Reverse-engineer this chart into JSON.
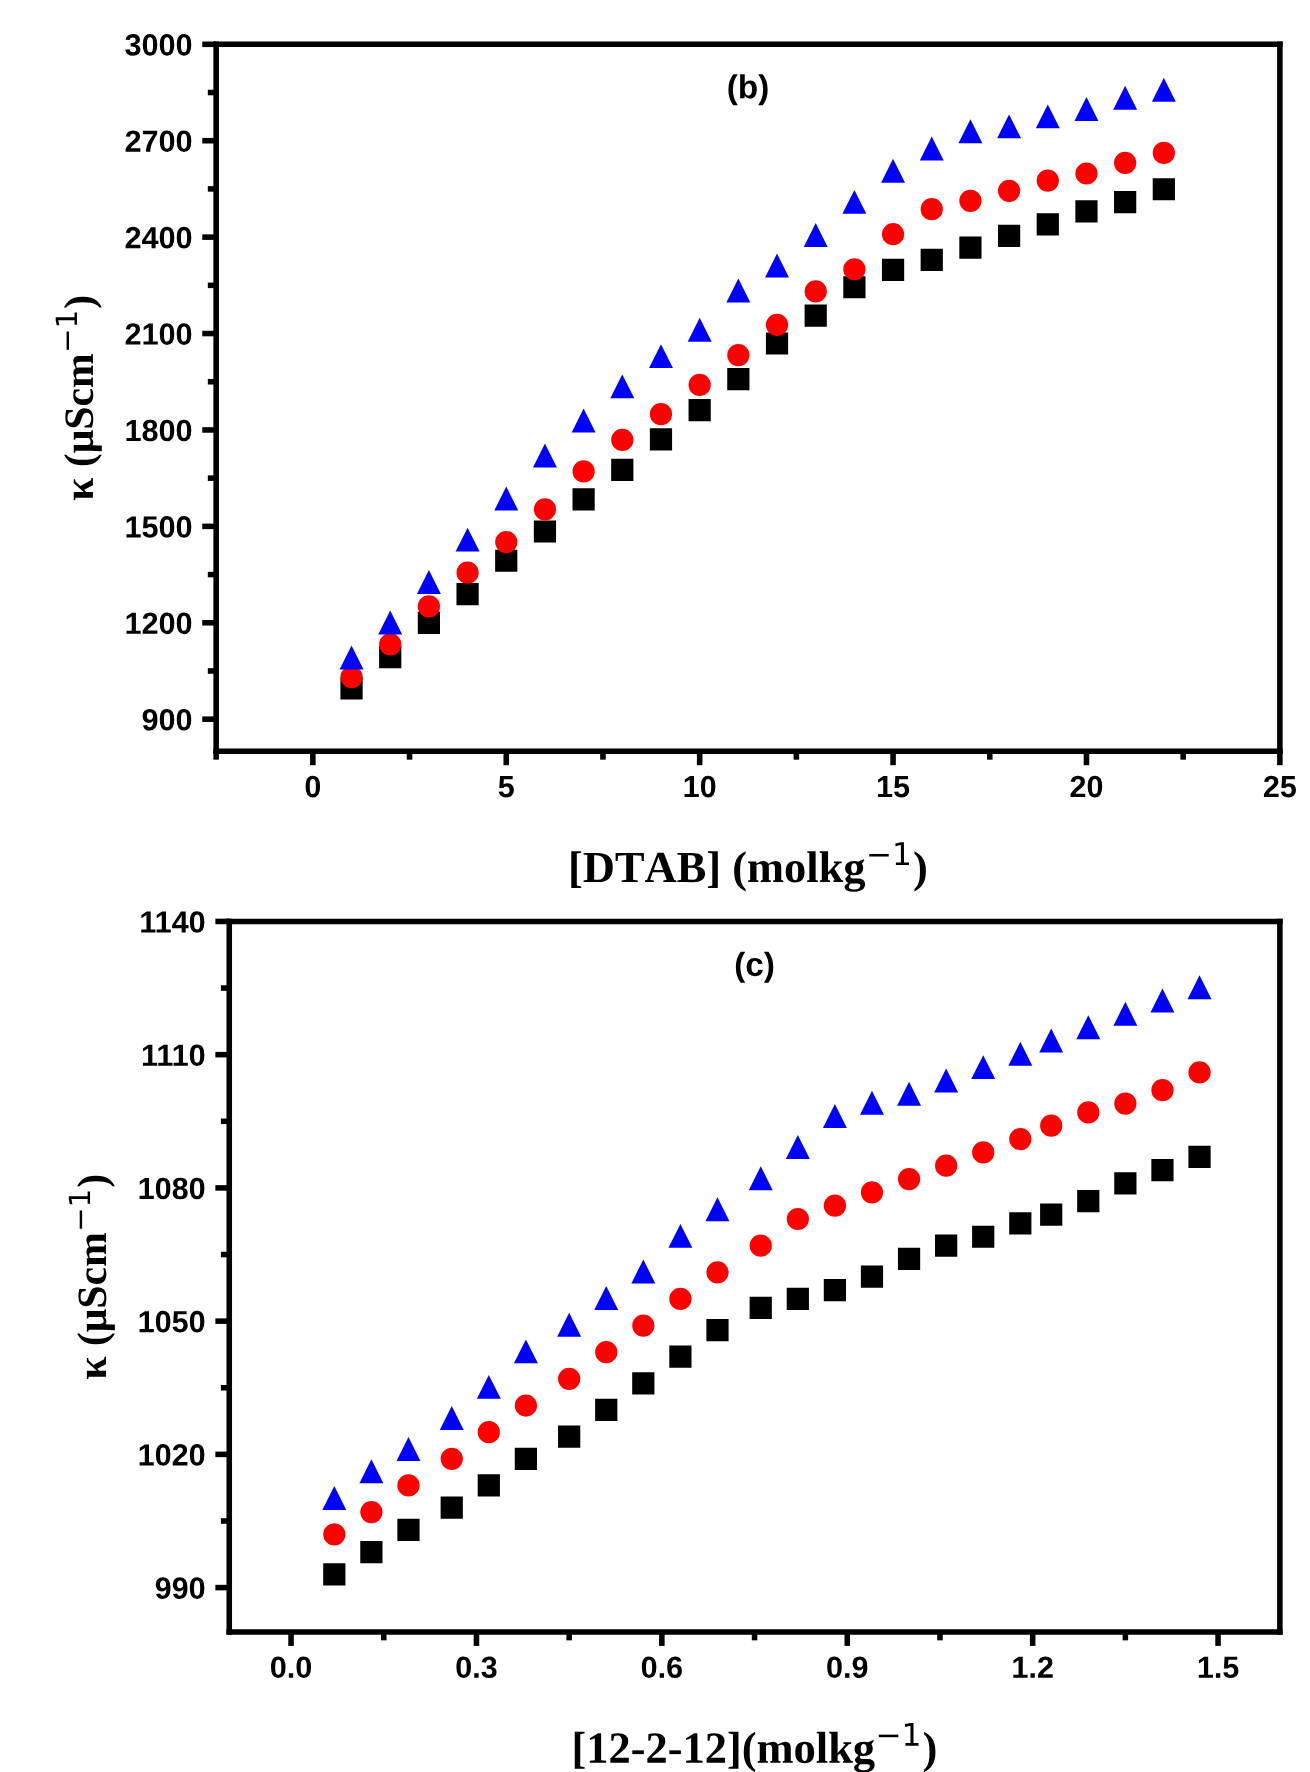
{
  "chart_data": [
    {
      "type": "scatter",
      "title": "(b)",
      "xlabel": "[DTAB] (molkg$^{−1}$)",
      "ylabel": "κ (μScm$^{−1}$)",
      "x": [
        1,
        2,
        3,
        4,
        5,
        6,
        7,
        8,
        9,
        10,
        11,
        12,
        13,
        14,
        15,
        16,
        17,
        18,
        19,
        20,
        21,
        22
      ],
      "series": [
        {
          "color": "#000000",
          "marker": "square",
          "values": [
            996,
            1093,
            1200,
            1289,
            1393,
            1484,
            1584,
            1676,
            1771,
            1862,
            1958,
            2069,
            2156,
            2244,
            2298,
            2329,
            2367,
            2404,
            2440,
            2480,
            2509,
            2549
          ]
        },
        {
          "color": "#ff0000",
          "marker": "circle",
          "values": [
            1031,
            1133,
            1251,
            1356,
            1451,
            1553,
            1671,
            1769,
            1849,
            1940,
            2033,
            2127,
            2231,
            2300,
            2409,
            2487,
            2513,
            2544,
            2576,
            2598,
            2631,
            2662
          ]
        },
        {
          "color": "#0000ff",
          "marker": "triangle",
          "values": [
            1089,
            1198,
            1324,
            1456,
            1584,
            1718,
            1827,
            1933,
            2027,
            2109,
            2231,
            2309,
            2404,
            2507,
            2604,
            2673,
            2727,
            2742,
            2773,
            2796,
            2831,
            2856
          ]
        }
      ],
      "xlim": [
        -2.5,
        25
      ],
      "xticks": [
        0,
        5,
        10,
        15,
        20,
        25
      ],
      "ylim": [
        800,
        3000
      ],
      "yticks": [
        900,
        1200,
        1500,
        1800,
        2100,
        2400,
        2700,
        3000
      ],
      "grid": false,
      "legend": false
    },
    {
      "type": "scatter",
      "title": "(c)",
      "xlabel": "[12-2-12](molkg$^{−1}$)",
      "ylabel": "κ (μScm$^{−1}$)",
      "x": [
        0.07,
        0.13,
        0.19,
        0.26,
        0.32,
        0.38,
        0.45,
        0.51,
        0.57,
        0.63,
        0.69,
        0.76,
        0.82,
        0.88,
        0.94,
        1.0,
        1.06,
        1.12,
        1.18,
        1.23,
        1.29,
        1.35,
        1.41,
        1.47
      ],
      "series": [
        {
          "color": "#000000",
          "marker": "square",
          "values": [
            993,
            998,
            1003,
            1008,
            1013,
            1019,
            1024,
            1030,
            1036,
            1042,
            1048,
            1053,
            1055,
            1057,
            1060,
            1064,
            1067,
            1069,
            1072,
            1074,
            1077,
            1081,
            1084,
            1087
          ]
        },
        {
          "color": "#ff0000",
          "marker": "circle",
          "values": [
            1002,
            1007,
            1013,
            1019,
            1025,
            1031,
            1037,
            1043,
            1049,
            1055,
            1061,
            1067,
            1073,
            1076,
            1079,
            1082,
            1085,
            1088,
            1091,
            1094,
            1097,
            1099,
            1102,
            1106
          ]
        },
        {
          "color": "#0000ff",
          "marker": "triangle",
          "values": [
            1010,
            1016,
            1021,
            1028,
            1035,
            1043,
            1049,
            1055,
            1061,
            1069,
            1075,
            1082,
            1089,
            1096,
            1099,
            1101,
            1104,
            1107,
            1110,
            1113,
            1116,
            1119,
            1122,
            1125
          ]
        }
      ],
      "xlim": [
        -0.1,
        1.6
      ],
      "xticks": [
        {
          "value": 0,
          "label": "0.0"
        },
        0.3,
        0.6,
        0.9,
        1.2,
        1.5
      ],
      "ylim": [
        980,
        1140
      ],
      "yticks": [
        990,
        1020,
        1050,
        1080,
        1110,
        1140
      ],
      "grid": false,
      "legend": false
    }
  ]
}
